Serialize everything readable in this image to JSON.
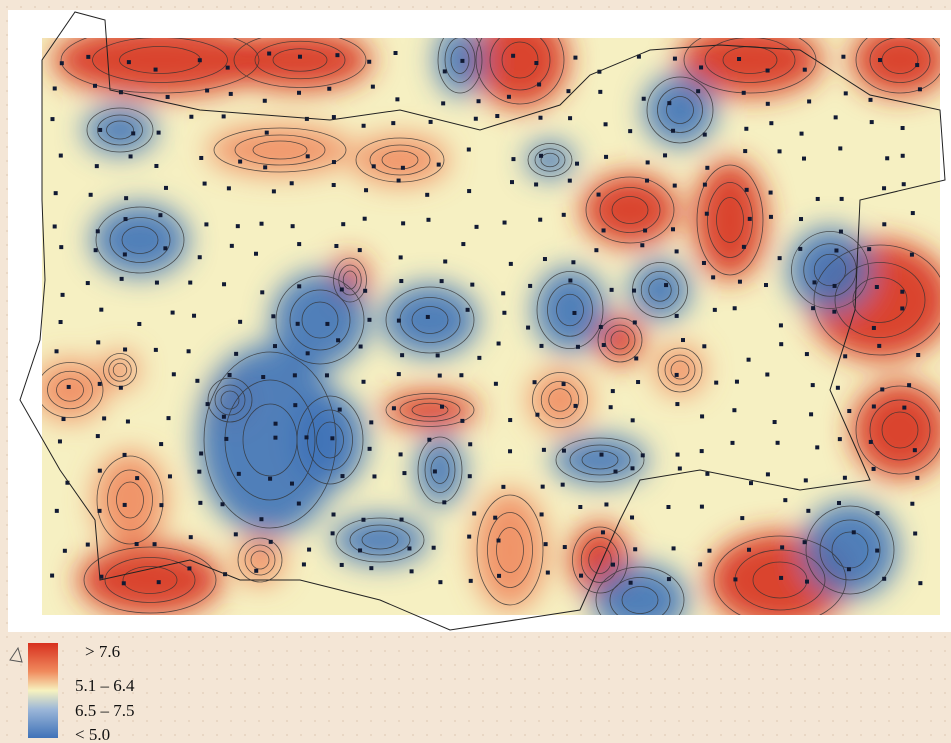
{
  "legend": {
    "items": [
      "> 7.6",
      "5.1 – 6.4",
      "6.5 – 7.5",
      "< 5.0"
    ]
  }
}
